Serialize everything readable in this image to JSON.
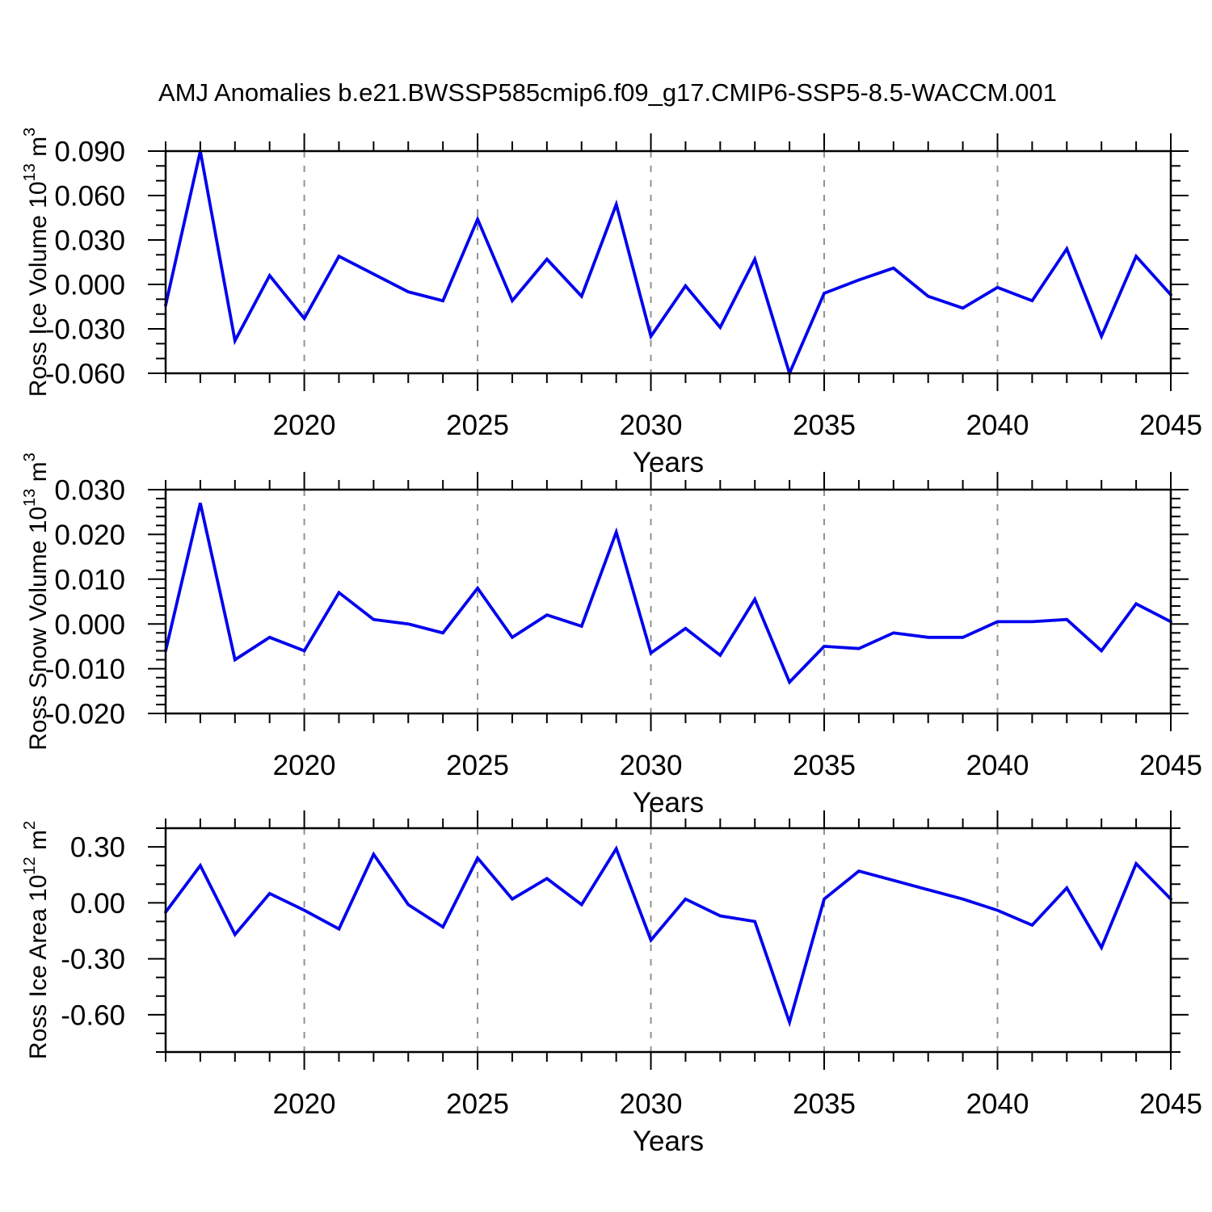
{
  "title": "AMJ Anomalies b.e21.BWSSP585cmip6.f09_g17.CMIP6-SSP5-8.5-WACCM.001",
  "colors": {
    "line": "#0000ee",
    "grid": "#919191",
    "axis": "#000000",
    "background": "#ffffff"
  },
  "years": [
    2016,
    2017,
    2018,
    2019,
    2020,
    2021,
    2022,
    2023,
    2024,
    2025,
    2026,
    2027,
    2028,
    2029,
    2030,
    2031,
    2032,
    2033,
    2034,
    2035,
    2036,
    2037,
    2038,
    2039,
    2040,
    2041,
    2042,
    2043,
    2044,
    2045
  ],
  "chart_data": [
    {
      "type": "line",
      "series_name": "Ross Ice Volume anomaly",
      "ylabel": {
        "prefix": "Ross Ice Volume 10",
        "exp": "13",
        "unit": " m",
        "unit_exp": "3"
      },
      "xlabel": "Years",
      "ylim": [
        -0.06,
        0.09
      ],
      "xlim": [
        2016,
        2045
      ],
      "ytick_values": [
        0.09,
        0.06,
        0.03,
        0.0,
        -0.03,
        -0.06
      ],
      "ytick_labels": [
        "0.090",
        "0.060",
        "0.030",
        "0.000",
        "-0.030",
        "-0.060"
      ],
      "y_minor_step": 0.01,
      "xtick_values": [
        2020,
        2025,
        2030,
        2035,
        2040,
        2045
      ],
      "xtick_labels": [
        "2020",
        "2025",
        "2030",
        "2035",
        "2040",
        "2045"
      ],
      "x_minor_step": 1,
      "grid_x": [
        2020,
        2025,
        2030,
        2035,
        2040
      ],
      "grid_on": true,
      "legend": "none",
      "values": [
        -0.014,
        0.09,
        -0.038,
        0.006,
        -0.023,
        0.019,
        0.007,
        -0.005,
        -0.011,
        0.044,
        -0.011,
        0.017,
        -0.008,
        0.054,
        -0.035,
        -0.001,
        -0.029,
        0.017,
        -0.06,
        -0.006,
        0.003,
        0.011,
        -0.008,
        -0.016,
        -0.002,
        -0.011,
        0.024,
        -0.035,
        0.019,
        -0.007
      ]
    },
    {
      "type": "line",
      "series_name": "Ross Snow Volume anomaly",
      "ylabel": {
        "prefix": "Ross Snow Volume 10",
        "exp": "13",
        "unit": " m",
        "unit_exp": "3"
      },
      "xlabel": "Years",
      "ylim": [
        -0.02,
        0.03
      ],
      "xlim": [
        2016,
        2045
      ],
      "ytick_values": [
        0.03,
        0.02,
        0.01,
        0.0,
        -0.01,
        -0.02
      ],
      "ytick_labels": [
        "0.030",
        "0.020",
        "0.010",
        "0.000",
        "-0.010",
        "-0.020"
      ],
      "y_minor_step": 0.002,
      "xtick_values": [
        2020,
        2025,
        2030,
        2035,
        2040,
        2045
      ],
      "xtick_labels": [
        "2020",
        "2025",
        "2030",
        "2035",
        "2040",
        "2045"
      ],
      "x_minor_step": 1,
      "grid_x": [
        2020,
        2025,
        2030,
        2035,
        2040
      ],
      "grid_on": true,
      "legend": "none",
      "values": [
        -0.006,
        0.027,
        -0.008,
        -0.003,
        -0.006,
        0.007,
        0.001,
        0.0,
        -0.002,
        0.008,
        -0.003,
        0.002,
        -0.0005,
        0.0205,
        -0.0065,
        -0.001,
        -0.007,
        0.0055,
        -0.013,
        -0.005,
        -0.0055,
        -0.002,
        -0.003,
        -0.003,
        0.0005,
        0.0005,
        0.001,
        -0.006,
        0.0045,
        0.0005
      ]
    },
    {
      "type": "line",
      "series_name": "Ross Ice Area anomaly",
      "ylabel": {
        "prefix": "Ross Ice Area 10",
        "exp": "12",
        "unit": " m",
        "unit_exp": "2"
      },
      "xlabel": "Years",
      "ylim": [
        -0.8,
        0.4
      ],
      "xlim": [
        2016,
        2045
      ],
      "ytick_values": [
        0.3,
        0.0,
        -0.3,
        -0.6
      ],
      "ytick_labels": [
        "0.30",
        "0.00",
        "-0.30",
        "-0.60"
      ],
      "y_minor_step": 0.1,
      "xtick_values": [
        2020,
        2025,
        2030,
        2035,
        2040,
        2045
      ],
      "xtick_labels": [
        "2020",
        "2025",
        "2030",
        "2035",
        "2040",
        "2045"
      ],
      "x_minor_step": 1,
      "grid_x": [
        2020,
        2025,
        2030,
        2035,
        2040
      ],
      "grid_on": true,
      "legend": "none",
      "values": [
        -0.05,
        0.2,
        -0.17,
        0.05,
        -0.04,
        -0.14,
        0.26,
        -0.01,
        -0.13,
        0.24,
        0.02,
        0.13,
        -0.01,
        0.29,
        -0.2,
        0.02,
        -0.07,
        -0.1,
        -0.64,
        0.02,
        0.17,
        0.12,
        0.07,
        0.02,
        -0.04,
        -0.12,
        0.08,
        -0.24,
        0.21,
        0.02
      ]
    }
  ]
}
